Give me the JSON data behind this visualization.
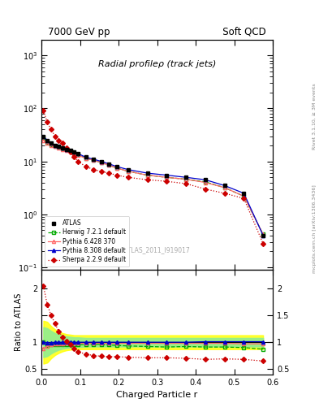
{
  "title_left": "7000 GeV pp",
  "title_right": "Soft QCD",
  "plot_title": "Radial profileρ (track jets)",
  "xlabel": "Charged Particle r",
  "ylabel_bottom": "Ratio to ATLAS",
  "right_label_top": "Rivet 3.1.10, ≥ 3M events",
  "right_label_bot": "mcplots.cern.ch [arXiv:1306.3436]",
  "watermark": "ATLAS_2011_I919017",
  "r_values": [
    0.005,
    0.015,
    0.025,
    0.035,
    0.045,
    0.055,
    0.065,
    0.075,
    0.085,
    0.095,
    0.115,
    0.135,
    0.155,
    0.175,
    0.195,
    0.225,
    0.275,
    0.325,
    0.375,
    0.425,
    0.475,
    0.525,
    0.575
  ],
  "atlas_y": [
    30,
    25,
    22,
    20,
    19,
    18,
    17,
    16,
    15,
    14,
    12,
    11,
    10,
    9,
    8,
    7,
    6,
    5.5,
    5,
    4.5,
    3.5,
    2.5,
    0.4
  ],
  "herwig_y": [
    28,
    23,
    21,
    19.5,
    18.5,
    17.5,
    16.5,
    15.5,
    14.5,
    13.5,
    11.5,
    10.5,
    9.5,
    8.5,
    7.5,
    6.5,
    5.5,
    5.0,
    4.6,
    4.1,
    3.2,
    2.2,
    0.42
  ],
  "pythia6_y": [
    25,
    22,
    20,
    19,
    18,
    17,
    16,
    15,
    14,
    13,
    11.5,
    10.5,
    9.5,
    8.5,
    7.5,
    6.5,
    5.5,
    5.0,
    4.6,
    4.0,
    3.2,
    2.2,
    0.42
  ],
  "pythia8_y": [
    30,
    25,
    22,
    20,
    19,
    18,
    17,
    16,
    15,
    14,
    12,
    11,
    10,
    9,
    8,
    7,
    6,
    5.5,
    5,
    4.5,
    3.5,
    2.5,
    0.4
  ],
  "sherpa_y": [
    90,
    55,
    40,
    30,
    25,
    22,
    18,
    15,
    12,
    10,
    8,
    7,
    6.5,
    6,
    5.5,
    5,
    4.5,
    4.2,
    3.8,
    3.0,
    2.5,
    2.0,
    0.28
  ],
  "herwig_ratio": [
    1.0,
    0.94,
    0.95,
    0.95,
    0.95,
    0.95,
    0.95,
    0.95,
    0.95,
    0.95,
    0.96,
    0.96,
    0.96,
    0.95,
    0.94,
    0.93,
    0.92,
    0.91,
    0.92,
    0.91,
    0.91,
    0.9,
    0.87
  ],
  "pythia6_ratio": [
    0.88,
    0.93,
    0.95,
    0.97,
    0.97,
    0.97,
    0.98,
    0.98,
    0.98,
    0.98,
    0.98,
    0.98,
    0.98,
    0.98,
    0.98,
    0.98,
    0.98,
    0.98,
    0.98,
    0.98,
    0.98,
    0.97,
    0.97
  ],
  "pythia8_ratio": [
    1.0,
    0.99,
    0.99,
    1.0,
    1.0,
    1.0,
    1.0,
    1.0,
    1.0,
    1.0,
    1.0,
    1.0,
    1.0,
    1.0,
    1.0,
    1.0,
    1.0,
    1.0,
    1.0,
    1.01,
    1.01,
    1.01,
    1.01
  ],
  "sherpa_ratio": [
    2.05,
    1.7,
    1.5,
    1.35,
    1.2,
    1.1,
    1.02,
    0.95,
    0.88,
    0.82,
    0.78,
    0.75,
    0.74,
    0.73,
    0.73,
    0.72,
    0.71,
    0.71,
    0.7,
    0.68,
    0.69,
    0.68,
    0.65
  ],
  "band_yellow_low": [
    0.6,
    0.62,
    0.7,
    0.76,
    0.8,
    0.83,
    0.85,
    0.86,
    0.87,
    0.87,
    0.87,
    0.87,
    0.87,
    0.87,
    0.87,
    0.87,
    0.87,
    0.87,
    0.87,
    0.87,
    0.87,
    0.87,
    0.87
  ],
  "band_yellow_high": [
    1.4,
    1.38,
    1.3,
    1.24,
    1.2,
    1.17,
    1.15,
    1.14,
    1.13,
    1.13,
    1.13,
    1.13,
    1.13,
    1.13,
    1.13,
    1.13,
    1.13,
    1.13,
    1.13,
    1.13,
    1.13,
    1.13,
    1.13
  ],
  "band_green_low": [
    0.72,
    0.74,
    0.79,
    0.83,
    0.86,
    0.88,
    0.89,
    0.9,
    0.91,
    0.91,
    0.92,
    0.92,
    0.92,
    0.92,
    0.92,
    0.92,
    0.92,
    0.92,
    0.92,
    0.92,
    0.92,
    0.92,
    0.92
  ],
  "band_green_high": [
    1.28,
    1.26,
    1.21,
    1.17,
    1.14,
    1.12,
    1.11,
    1.1,
    1.09,
    1.09,
    1.08,
    1.08,
    1.08,
    1.08,
    1.08,
    1.08,
    1.08,
    1.08,
    1.08,
    1.08,
    1.08,
    1.08,
    1.08
  ]
}
